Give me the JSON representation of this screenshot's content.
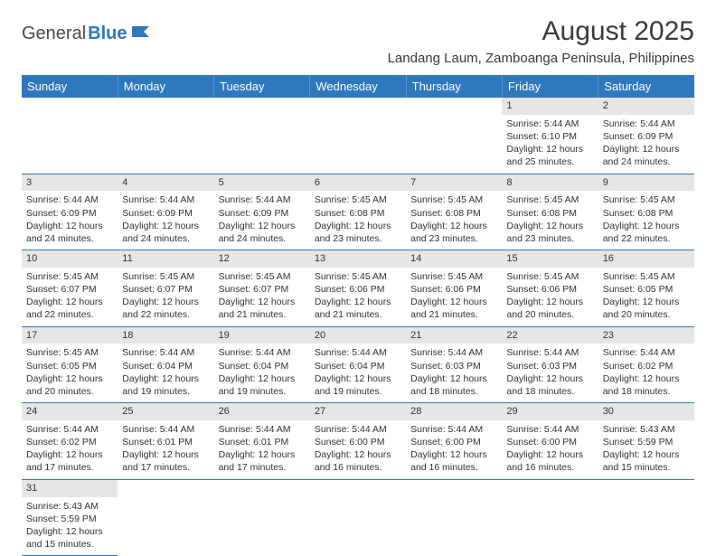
{
  "logo": {
    "general": "General",
    "blue": "Blue"
  },
  "title": "August 2025",
  "location": "Landang Laum, Zamboanga Peninsula, Philippines",
  "colors": {
    "header_bg": "#2f78bd",
    "header_text": "#ffffff",
    "daynum_bg": "#e6e6e6",
    "row_border": "#2f78bd",
    "body_text": "#333333",
    "logo_gray": "#4a4a4a",
    "logo_blue": "#2f78bd"
  },
  "day_headers": [
    "Sunday",
    "Monday",
    "Tuesday",
    "Wednesday",
    "Thursday",
    "Friday",
    "Saturday"
  ],
  "weeks": [
    [
      null,
      null,
      null,
      null,
      null,
      {
        "n": "1",
        "sr": "Sunrise: 5:44 AM",
        "ss": "Sunset: 6:10 PM",
        "d1": "Daylight: 12 hours",
        "d2": "and 25 minutes."
      },
      {
        "n": "2",
        "sr": "Sunrise: 5:44 AM",
        "ss": "Sunset: 6:09 PM",
        "d1": "Daylight: 12 hours",
        "d2": "and 24 minutes."
      }
    ],
    [
      {
        "n": "3",
        "sr": "Sunrise: 5:44 AM",
        "ss": "Sunset: 6:09 PM",
        "d1": "Daylight: 12 hours",
        "d2": "and 24 minutes."
      },
      {
        "n": "4",
        "sr": "Sunrise: 5:44 AM",
        "ss": "Sunset: 6:09 PM",
        "d1": "Daylight: 12 hours",
        "d2": "and 24 minutes."
      },
      {
        "n": "5",
        "sr": "Sunrise: 5:44 AM",
        "ss": "Sunset: 6:09 PM",
        "d1": "Daylight: 12 hours",
        "d2": "and 24 minutes."
      },
      {
        "n": "6",
        "sr": "Sunrise: 5:45 AM",
        "ss": "Sunset: 6:08 PM",
        "d1": "Daylight: 12 hours",
        "d2": "and 23 minutes."
      },
      {
        "n": "7",
        "sr": "Sunrise: 5:45 AM",
        "ss": "Sunset: 6:08 PM",
        "d1": "Daylight: 12 hours",
        "d2": "and 23 minutes."
      },
      {
        "n": "8",
        "sr": "Sunrise: 5:45 AM",
        "ss": "Sunset: 6:08 PM",
        "d1": "Daylight: 12 hours",
        "d2": "and 23 minutes."
      },
      {
        "n": "9",
        "sr": "Sunrise: 5:45 AM",
        "ss": "Sunset: 6:08 PM",
        "d1": "Daylight: 12 hours",
        "d2": "and 22 minutes."
      }
    ],
    [
      {
        "n": "10",
        "sr": "Sunrise: 5:45 AM",
        "ss": "Sunset: 6:07 PM",
        "d1": "Daylight: 12 hours",
        "d2": "and 22 minutes."
      },
      {
        "n": "11",
        "sr": "Sunrise: 5:45 AM",
        "ss": "Sunset: 6:07 PM",
        "d1": "Daylight: 12 hours",
        "d2": "and 22 minutes."
      },
      {
        "n": "12",
        "sr": "Sunrise: 5:45 AM",
        "ss": "Sunset: 6:07 PM",
        "d1": "Daylight: 12 hours",
        "d2": "and 21 minutes."
      },
      {
        "n": "13",
        "sr": "Sunrise: 5:45 AM",
        "ss": "Sunset: 6:06 PM",
        "d1": "Daylight: 12 hours",
        "d2": "and 21 minutes."
      },
      {
        "n": "14",
        "sr": "Sunrise: 5:45 AM",
        "ss": "Sunset: 6:06 PM",
        "d1": "Daylight: 12 hours",
        "d2": "and 21 minutes."
      },
      {
        "n": "15",
        "sr": "Sunrise: 5:45 AM",
        "ss": "Sunset: 6:06 PM",
        "d1": "Daylight: 12 hours",
        "d2": "and 20 minutes."
      },
      {
        "n": "16",
        "sr": "Sunrise: 5:45 AM",
        "ss": "Sunset: 6:05 PM",
        "d1": "Daylight: 12 hours",
        "d2": "and 20 minutes."
      }
    ],
    [
      {
        "n": "17",
        "sr": "Sunrise: 5:45 AM",
        "ss": "Sunset: 6:05 PM",
        "d1": "Daylight: 12 hours",
        "d2": "and 20 minutes."
      },
      {
        "n": "18",
        "sr": "Sunrise: 5:44 AM",
        "ss": "Sunset: 6:04 PM",
        "d1": "Daylight: 12 hours",
        "d2": "and 19 minutes."
      },
      {
        "n": "19",
        "sr": "Sunrise: 5:44 AM",
        "ss": "Sunset: 6:04 PM",
        "d1": "Daylight: 12 hours",
        "d2": "and 19 minutes."
      },
      {
        "n": "20",
        "sr": "Sunrise: 5:44 AM",
        "ss": "Sunset: 6:04 PM",
        "d1": "Daylight: 12 hours",
        "d2": "and 19 minutes."
      },
      {
        "n": "21",
        "sr": "Sunrise: 5:44 AM",
        "ss": "Sunset: 6:03 PM",
        "d1": "Daylight: 12 hours",
        "d2": "and 18 minutes."
      },
      {
        "n": "22",
        "sr": "Sunrise: 5:44 AM",
        "ss": "Sunset: 6:03 PM",
        "d1": "Daylight: 12 hours",
        "d2": "and 18 minutes."
      },
      {
        "n": "23",
        "sr": "Sunrise: 5:44 AM",
        "ss": "Sunset: 6:02 PM",
        "d1": "Daylight: 12 hours",
        "d2": "and 18 minutes."
      }
    ],
    [
      {
        "n": "24",
        "sr": "Sunrise: 5:44 AM",
        "ss": "Sunset: 6:02 PM",
        "d1": "Daylight: 12 hours",
        "d2": "and 17 minutes."
      },
      {
        "n": "25",
        "sr": "Sunrise: 5:44 AM",
        "ss": "Sunset: 6:01 PM",
        "d1": "Daylight: 12 hours",
        "d2": "and 17 minutes."
      },
      {
        "n": "26",
        "sr": "Sunrise: 5:44 AM",
        "ss": "Sunset: 6:01 PM",
        "d1": "Daylight: 12 hours",
        "d2": "and 17 minutes."
      },
      {
        "n": "27",
        "sr": "Sunrise: 5:44 AM",
        "ss": "Sunset: 6:00 PM",
        "d1": "Daylight: 12 hours",
        "d2": "and 16 minutes."
      },
      {
        "n": "28",
        "sr": "Sunrise: 5:44 AM",
        "ss": "Sunset: 6:00 PM",
        "d1": "Daylight: 12 hours",
        "d2": "and 16 minutes."
      },
      {
        "n": "29",
        "sr": "Sunrise: 5:44 AM",
        "ss": "Sunset: 6:00 PM",
        "d1": "Daylight: 12 hours",
        "d2": "and 16 minutes."
      },
      {
        "n": "30",
        "sr": "Sunrise: 5:43 AM",
        "ss": "Sunset: 5:59 PM",
        "d1": "Daylight: 12 hours",
        "d2": "and 15 minutes."
      }
    ],
    [
      {
        "n": "31",
        "sr": "Sunrise: 5:43 AM",
        "ss": "Sunset: 5:59 PM",
        "d1": "Daylight: 12 hours",
        "d2": "and 15 minutes."
      },
      null,
      null,
      null,
      null,
      null,
      null
    ]
  ]
}
